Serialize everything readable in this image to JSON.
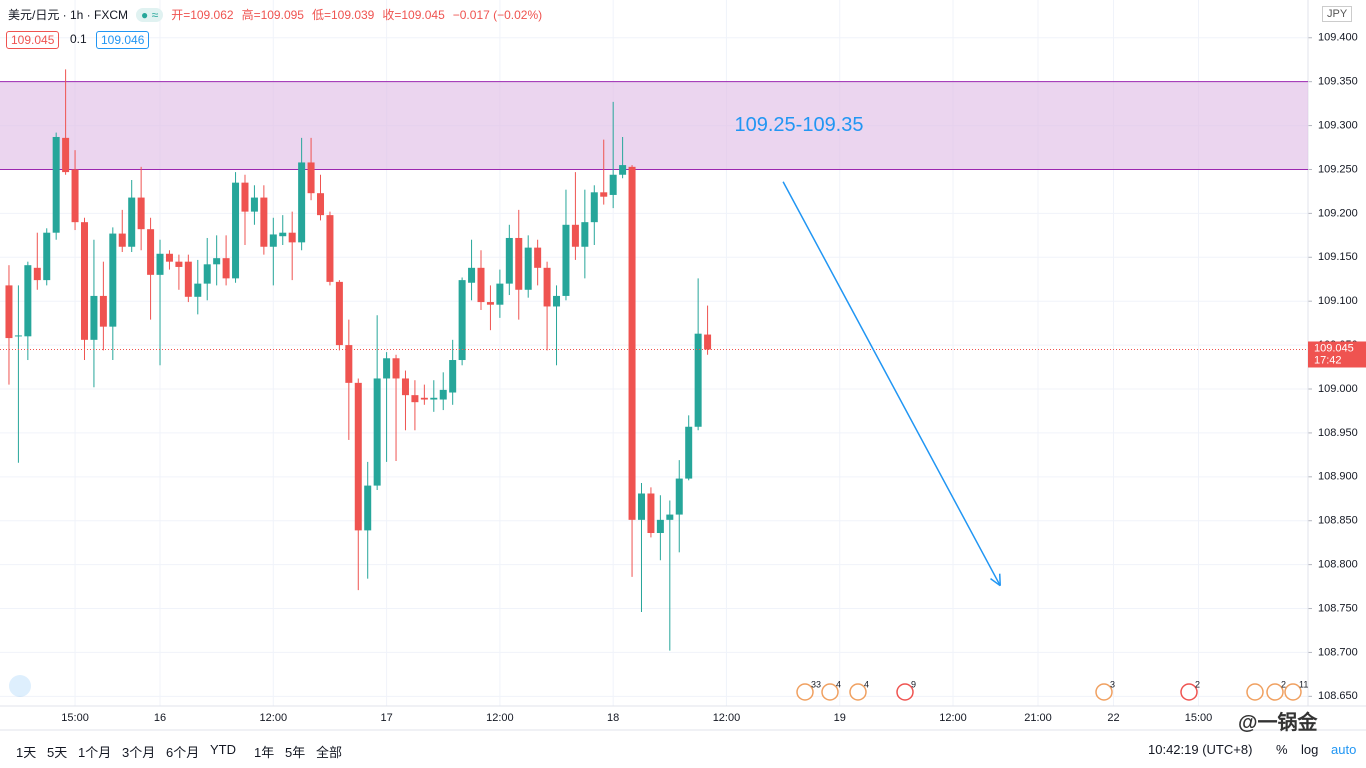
{
  "chart_data": {
    "type": "candlestick",
    "title": "美元/日元 · 1h · FXCM",
    "ohlc_text": [
      "开=109.062",
      "高=109.095",
      "低=109.039",
      "收=109.045",
      "−0.017 (−0.02%)"
    ],
    "bid": "109.045",
    "spread": "0.1",
    "ask": "109.046",
    "currency": "JPY",
    "up_color": "#26a69a",
    "down_color": "#ef5350",
    "grid": true,
    "x": [
      0,
      1,
      2,
      3,
      4,
      5,
      6,
      7,
      8,
      9,
      10,
      11,
      12,
      13,
      14,
      15,
      16,
      17,
      18,
      19,
      20,
      21,
      22,
      23,
      24,
      25,
      26,
      27,
      28,
      29,
      30,
      31,
      32,
      33,
      34,
      35,
      36,
      37,
      38,
      39,
      40,
      41,
      42,
      43,
      44,
      45,
      46,
      47,
      48,
      49,
      50,
      51,
      52,
      53,
      54,
      55,
      56,
      57,
      58,
      59,
      60,
      61,
      62,
      63,
      64,
      65,
      66,
      67,
      68,
      69,
      70,
      71,
      72,
      73,
      74
    ],
    "open": [
      109.118,
      109.06,
      109.06,
      109.138,
      109.124,
      109.178,
      109.286,
      109.25,
      109.19,
      109.056,
      109.106,
      109.071,
      109.177,
      109.162,
      109.218,
      109.182,
      109.13,
      109.154,
      109.145,
      109.145,
      109.105,
      109.12,
      109.142,
      109.149,
      109.126,
      109.235,
      109.202,
      109.218,
      109.162,
      109.174,
      109.178,
      109.167,
      109.258,
      109.223,
      109.198,
      109.122,
      109.05,
      109.007,
      108.839,
      108.89,
      109.012,
      109.035,
      109.012,
      108.993,
      108.99,
      108.988,
      108.988,
      108.996,
      109.033,
      109.121,
      109.138,
      109.099,
      109.096,
      109.12,
      109.172,
      109.113,
      109.161,
      109.138,
      109.094,
      109.106,
      109.187,
      109.162,
      109.19,
      109.224,
      109.221,
      109.244,
      109.253,
      108.851,
      108.881,
      108.836,
      108.851,
      108.857,
      108.898,
      108.957,
      109.062
    ],
    "high": [
      109.141,
      109.118,
      109.145,
      109.178,
      109.183,
      109.292,
      109.364,
      109.272,
      109.195,
      109.17,
      109.145,
      109.184,
      109.204,
      109.238,
      109.253,
      109.195,
      109.17,
      109.158,
      109.153,
      109.153,
      109.147,
      109.172,
      109.175,
      109.175,
      109.247,
      109.244,
      109.232,
      109.232,
      109.195,
      109.198,
      109.202,
      109.286,
      109.286,
      109.244,
      109.202,
      109.124,
      109.079,
      109.012,
      108.917,
      109.084,
      109.042,
      109.039,
      109.021,
      109.01,
      109.005,
      109.01,
      109.019,
      109.056,
      109.127,
      109.17,
      109.158,
      109.118,
      109.136,
      109.187,
      109.204,
      109.175,
      109.17,
      109.145,
      109.118,
      109.227,
      109.247,
      109.227,
      109.232,
      109.284,
      109.327,
      109.287,
      109.255,
      108.893,
      108.888,
      108.879,
      108.873,
      108.919,
      108.97,
      109.126,
      109.095
    ],
    "low": [
      109.005,
      108.916,
      109.033,
      109.113,
      109.118,
      109.17,
      109.244,
      109.181,
      109.033,
      109.002,
      109.044,
      109.033,
      109.156,
      109.156,
      109.158,
      109.079,
      109.027,
      109.136,
      109.113,
      109.099,
      109.085,
      109.101,
      109.118,
      109.118,
      109.121,
      109.164,
      109.187,
      109.153,
      109.118,
      109.164,
      109.124,
      109.158,
      109.215,
      109.192,
      109.118,
      109.044,
      108.942,
      108.771,
      108.784,
      108.885,
      108.917,
      108.918,
      108.953,
      108.953,
      108.982,
      108.974,
      108.976,
      108.982,
      109.027,
      109.101,
      109.09,
      109.067,
      109.081,
      109.107,
      109.079,
      109.104,
      109.118,
      109.044,
      109.027,
      109.101,
      109.147,
      109.126,
      109.164,
      109.21,
      109.206,
      109.24,
      108.786,
      108.746,
      108.831,
      108.805,
      108.702,
      108.814,
      108.896,
      108.953,
      109.039
    ],
    "close": [
      109.058,
      109.061,
      109.141,
      109.124,
      109.178,
      109.287,
      109.247,
      109.19,
      109.056,
      109.106,
      109.071,
      109.177,
      109.162,
      109.218,
      109.182,
      109.13,
      109.154,
      109.145,
      109.139,
      109.105,
      109.12,
      109.142,
      109.149,
      109.126,
      109.235,
      109.202,
      109.218,
      109.162,
      109.176,
      109.178,
      109.167,
      109.258,
      109.223,
      109.198,
      109.122,
      109.05,
      109.007,
      108.839,
      108.89,
      109.012,
      109.035,
      109.012,
      108.993,
      108.985,
      108.988,
      108.99,
      108.999,
      109.033,
      109.124,
      109.138,
      109.099,
      109.096,
      109.12,
      109.172,
      109.113,
      109.161,
      109.138,
      109.094,
      109.106,
      109.187,
      109.162,
      109.19,
      109.224,
      109.219,
      109.244,
      109.255,
      108.851,
      108.881,
      108.836,
      108.851,
      108.857,
      108.898,
      108.957,
      109.063,
      109.045
    ],
    "xlim": [
      -0.95,
      137.6
    ],
    "xticks": [
      {
        "value": 7,
        "label": "15:00"
      },
      {
        "value": 16,
        "label": "16"
      },
      {
        "value": 28,
        "label": "12:00"
      },
      {
        "value": 40,
        "label": "17"
      },
      {
        "value": 52,
        "label": "12:00"
      },
      {
        "value": 64,
        "label": "18"
      },
      {
        "value": 76,
        "label": "12:00"
      },
      {
        "value": 88,
        "label": "19"
      },
      {
        "value": 100,
        "label": "12:00"
      },
      {
        "value": 109,
        "label": "21:00"
      },
      {
        "value": 117,
        "label": "22"
      },
      {
        "value": 126,
        "label": "15:00"
      }
    ],
    "ylim": [
      108.639,
      109.443
    ],
    "yticks": [
      {
        "value": 109.4,
        "label": "109.400"
      },
      {
        "value": 109.35,
        "label": "109.350"
      },
      {
        "value": 109.3,
        "label": "109.300"
      },
      {
        "value": 109.25,
        "label": "109.250"
      },
      {
        "value": 109.2,
        "label": "109.200"
      },
      {
        "value": 109.15,
        "label": "109.150"
      },
      {
        "value": 109.1,
        "label": "109.100"
      },
      {
        "value": 109.05,
        "label": "109.050"
      },
      {
        "value": 109.0,
        "label": "109.000"
      },
      {
        "value": 108.95,
        "label": "108.950"
      },
      {
        "value": 108.9,
        "label": "108.900"
      },
      {
        "value": 108.85,
        "label": "108.850"
      },
      {
        "value": 108.8,
        "label": "108.800"
      },
      {
        "value": 108.75,
        "label": "108.750"
      },
      {
        "value": 108.7,
        "label": "108.700"
      },
      {
        "value": 108.65,
        "label": "108.650"
      }
    ],
    "last_price": {
      "value": 109.045,
      "label": "109.045",
      "countdown": "17:42"
    },
    "zone": {
      "low": 109.25,
      "high": 109.35,
      "label": "109.25-109.35",
      "color": "#e1bee7"
    },
    "arrow": {
      "x": [
        82,
        105
      ],
      "y": [
        109.236,
        108.776
      ],
      "color": "#2196f3"
    },
    "events": [
      33,
      4,
      4,
      9,
      3,
      2,
      2,
      11
    ]
  },
  "toolbar": {
    "ranges": [
      "1天",
      "5天",
      "1个月",
      "3个月",
      "6个月",
      "YTD",
      "1年",
      "5年",
      "全部"
    ],
    "clock": "10:42:19 (UTC+8)",
    "percent": "%",
    "log": "log",
    "auto": "auto"
  },
  "watermark": "@一锅金"
}
